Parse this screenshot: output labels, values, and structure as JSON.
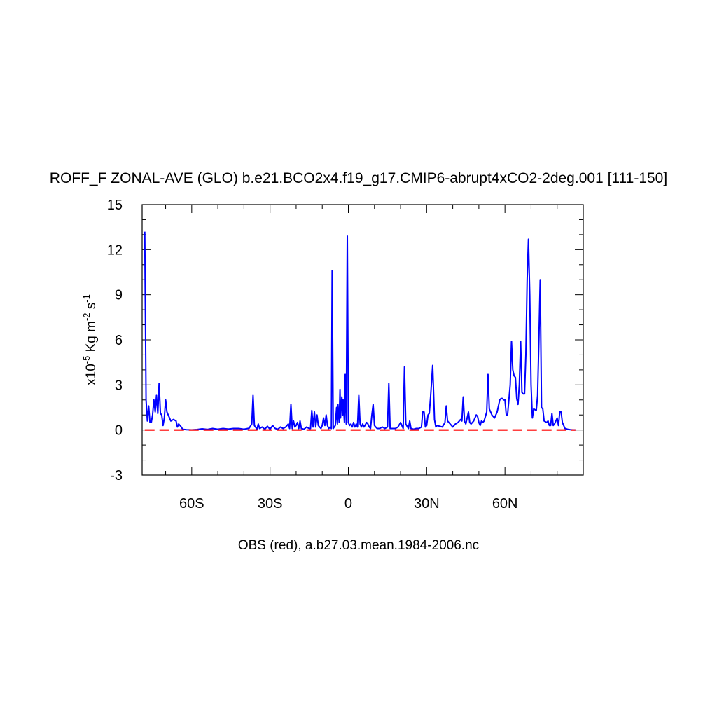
{
  "chart_data": {
    "type": "line",
    "title": "ROFF_F ZONAL-AVE (GLO) b.e21.BCO2x4.f19_g17.CMIP6-abrupt4xCO2-2deg.001 [111-150]",
    "ylabel": {
      "prefix": "x10",
      "prefix_exp": "-5",
      "unit": " Kg m",
      "unit_exp": "-2",
      "unit2": " s",
      "unit2_exp": "-1"
    },
    "xlabel": "OBS (red), a.b27.03.mean.1984-2006.nc",
    "xlim": [
      -79,
      90
    ],
    "ylim": [
      -3,
      15
    ],
    "x_ticks": [
      {
        "value": -60,
        "label": "60S"
      },
      {
        "value": -30,
        "label": "30S"
      },
      {
        "value": 0,
        "label": "0"
      },
      {
        "value": 30,
        "label": "30N"
      },
      {
        "value": 60,
        "label": "60N"
      }
    ],
    "y_ticks": [
      {
        "value": -3,
        "label": "-3"
      },
      {
        "value": 0,
        "label": "0"
      },
      {
        "value": 3,
        "label": "3"
      },
      {
        "value": 6,
        "label": "6"
      },
      {
        "value": 9,
        "label": "9"
      },
      {
        "value": 12,
        "label": "12"
      },
      {
        "value": 15,
        "label": "15"
      }
    ],
    "x_minor_step": 10,
    "y_minor_step": 1,
    "grid": false,
    "series": [
      {
        "color": "#0000ff",
        "style": "solid",
        "points": [
          [
            -78,
            13.2
          ],
          [
            -77.5,
            2.0
          ],
          [
            -77,
            0.6
          ],
          [
            -76.5,
            1.6
          ],
          [
            -76,
            0.5
          ],
          [
            -75.5,
            0.5
          ],
          [
            -75,
            1.0
          ],
          [
            -74.5,
            2.0
          ],
          [
            -74,
            1.2
          ],
          [
            -73.5,
            2.3
          ],
          [
            -73,
            1.1
          ],
          [
            -72.5,
            3.1
          ],
          [
            -72,
            1.1
          ],
          [
            -71.5,
            1.0
          ],
          [
            -71,
            0.3
          ],
          [
            -70.5,
            0.8
          ],
          [
            -70,
            2.0
          ],
          [
            -69.5,
            1.2
          ],
          [
            -69,
            1.0
          ],
          [
            -68,
            0.6
          ],
          [
            -67,
            0.7
          ],
          [
            -66,
            0.6
          ],
          [
            -65.5,
            0.2
          ],
          [
            -65,
            0.4
          ],
          [
            -64,
            0.2
          ],
          [
            -63.5,
            0.05
          ],
          [
            -62,
            0.02
          ],
          [
            -60,
            0.01
          ],
          [
            -58,
            0.03
          ],
          [
            -56,
            0.08
          ],
          [
            -54,
            0.04
          ],
          [
            -52,
            0.1
          ],
          [
            -50,
            0.05
          ],
          [
            -48,
            0.1
          ],
          [
            -46,
            0.06
          ],
          [
            -44,
            0.1
          ],
          [
            -42,
            0.1
          ],
          [
            -40,
            0.05
          ],
          [
            -38,
            0.12
          ],
          [
            -37,
            0.4
          ],
          [
            -36.5,
            2.3
          ],
          [
            -36,
            0.3
          ],
          [
            -35,
            0.05
          ],
          [
            -34.5,
            0.4
          ],
          [
            -34,
            0.1
          ],
          [
            -33,
            0.2
          ],
          [
            -32,
            0.05
          ],
          [
            -31,
            0.25
          ],
          [
            -30,
            0.05
          ],
          [
            -29,
            0.3
          ],
          [
            -28,
            0.1
          ],
          [
            -27,
            0.05
          ],
          [
            -26,
            0.2
          ],
          [
            -25,
            0.1
          ],
          [
            -24,
            0.2
          ],
          [
            -23,
            0.4
          ],
          [
            -22.5,
            0.1
          ],
          [
            -22,
            1.7
          ],
          [
            -21.5,
            0.1
          ],
          [
            -21,
            0.6
          ],
          [
            -20.5,
            0.2
          ],
          [
            -20,
            0.3
          ],
          [
            -19.5,
            0.5
          ],
          [
            -19,
            0.1
          ],
          [
            -18.5,
            0.6
          ],
          [
            -18,
            0.1
          ],
          [
            -17,
            0.05
          ],
          [
            -16,
            0.2
          ],
          [
            -15,
            0.1
          ],
          [
            -14.5,
            0.1
          ],
          [
            -14,
            1.3
          ],
          [
            -13.5,
            0.2
          ],
          [
            -13,
            1.2
          ],
          [
            -12.5,
            0.2
          ],
          [
            -12,
            1.0
          ],
          [
            -11.5,
            0.3
          ],
          [
            -11,
            0.2
          ],
          [
            -10.5,
            0.1
          ],
          [
            -10,
            0.3
          ],
          [
            -9.5,
            0.8
          ],
          [
            -9,
            0.3
          ],
          [
            -8.5,
            1.0
          ],
          [
            -8,
            0.3
          ],
          [
            -7.5,
            0.1
          ],
          [
            -7,
            0.2
          ],
          [
            -6.5,
            0.1
          ],
          [
            -6.2,
            10.6
          ],
          [
            -5.8,
            0.1
          ],
          [
            -5,
            0.3
          ],
          [
            -4.5,
            1.5
          ],
          [
            -4.2,
            0.4
          ],
          [
            -4,
            1.7
          ],
          [
            -3.5,
            0.5
          ],
          [
            -3.2,
            2.7
          ],
          [
            -3,
            0.8
          ],
          [
            -2.5,
            2.2
          ],
          [
            -2.2,
            1.0
          ],
          [
            -2,
            2.0
          ],
          [
            -1.5,
            0.5
          ],
          [
            -1.2,
            3.7
          ],
          [
            -0.8,
            0.4
          ],
          [
            -0.4,
            12.9
          ],
          [
            0,
            0.5
          ],
          [
            0.5,
            0.3
          ],
          [
            1,
            0.4
          ],
          [
            1.5,
            0.2
          ],
          [
            2,
            0.5
          ],
          [
            2.5,
            0.2
          ],
          [
            3,
            0.4
          ],
          [
            3.5,
            0.2
          ],
          [
            4,
            2.3
          ],
          [
            4.5,
            0.4
          ],
          [
            5,
            0.2
          ],
          [
            5.5,
            0.4
          ],
          [
            6,
            0.2
          ],
          [
            7,
            0.5
          ],
          [
            7.5,
            0.4
          ],
          [
            8,
            0.2
          ],
          [
            8.5,
            0.1
          ],
          [
            9,
            1.0
          ],
          [
            9.5,
            1.7
          ],
          [
            10,
            0.3
          ],
          [
            11,
            0.1
          ],
          [
            12,
            0.1
          ],
          [
            13,
            0.2
          ],
          [
            14,
            0.1
          ],
          [
            15,
            0.2
          ],
          [
            15.5,
            3.1
          ],
          [
            16,
            0.1
          ],
          [
            17,
            0.1
          ],
          [
            18,
            0.1
          ],
          [
            19,
            0.2
          ],
          [
            20,
            0.5
          ],
          [
            21,
            0.1
          ],
          [
            21.5,
            4.2
          ],
          [
            22,
            0.4
          ],
          [
            23,
            0.1
          ],
          [
            23.5,
            0.6
          ],
          [
            24,
            0.1
          ],
          [
            25,
            0.05
          ],
          [
            26,
            0.1
          ],
          [
            27,
            0.1
          ],
          [
            28,
            0.2
          ],
          [
            28.5,
            1.2
          ],
          [
            29,
            1.2
          ],
          [
            29.5,
            0.2
          ],
          [
            30,
            0.3
          ],
          [
            30.5,
            1.0
          ],
          [
            31,
            1.1
          ],
          [
            31.5,
            2.2
          ],
          [
            32.3,
            4.3
          ],
          [
            33,
            0.7
          ],
          [
            33.5,
            0.2
          ],
          [
            34,
            0.3
          ],
          [
            35,
            0.25
          ],
          [
            36,
            0.2
          ],
          [
            37,
            0.5
          ],
          [
            37.5,
            1.6
          ],
          [
            38,
            0.6
          ],
          [
            39,
            0.4
          ],
          [
            40,
            0.2
          ],
          [
            41,
            0.4
          ],
          [
            42,
            0.5
          ],
          [
            43,
            0.7
          ],
          [
            43.5,
            0.6
          ],
          [
            44,
            2.2
          ],
          [
            44.5,
            0.6
          ],
          [
            45,
            0.4
          ],
          [
            46,
            1.2
          ],
          [
            46.5,
            0.5
          ],
          [
            47,
            0.4
          ],
          [
            48,
            0.6
          ],
          [
            49,
            1.0
          ],
          [
            49.5,
            0.9
          ],
          [
            50,
            0.5
          ],
          [
            50.5,
            0.3
          ],
          [
            51,
            0.6
          ],
          [
            51.5,
            0.5
          ],
          [
            52,
            0.6
          ],
          [
            53,
            1.2
          ],
          [
            53.5,
            3.7
          ],
          [
            54,
            1.4
          ],
          [
            55,
            1.0
          ],
          [
            56,
            0.8
          ],
          [
            57,
            1.2
          ],
          [
            58,
            2.0
          ],
          [
            58.5,
            2.1
          ],
          [
            59,
            2.1
          ],
          [
            59.5,
            2.0
          ],
          [
            60,
            2.0
          ],
          [
            60.5,
            1.0
          ],
          [
            61,
            1.0
          ],
          [
            62,
            3.0
          ],
          [
            62.5,
            5.9
          ],
          [
            63,
            4.0
          ],
          [
            63.5,
            3.6
          ],
          [
            64,
            3.5
          ],
          [
            64.5,
            2.1
          ],
          [
            65,
            1.7
          ],
          [
            65.5,
            3.0
          ],
          [
            66,
            5.9
          ],
          [
            66.5,
            2.5
          ],
          [
            67,
            2.4
          ],
          [
            67.5,
            2.4
          ],
          [
            68,
            5.0
          ],
          [
            68.5,
            10.0
          ],
          [
            69,
            12.7
          ],
          [
            69.5,
            9.0
          ],
          [
            70,
            3.0
          ],
          [
            70.5,
            0.8
          ],
          [
            71,
            1.4
          ],
          [
            72,
            1.3
          ],
          [
            72.5,
            2.3
          ],
          [
            73,
            6.0
          ],
          [
            73.5,
            10.0
          ],
          [
            74,
            1.5
          ],
          [
            74.5,
            1.4
          ],
          [
            75,
            0.6
          ],
          [
            76,
            0.5
          ],
          [
            76.5,
            0.6
          ],
          [
            77,
            0.3
          ],
          [
            77.5,
            0.3
          ],
          [
            78,
            1.1
          ],
          [
            78.5,
            0.3
          ],
          [
            79,
            0.4
          ],
          [
            80,
            0.8
          ],
          [
            80.5,
            0.3
          ],
          [
            81,
            1.2
          ],
          [
            81.5,
            1.2
          ],
          [
            82,
            0.5
          ],
          [
            83,
            0.1
          ],
          [
            84,
            0.05
          ],
          [
            85,
            0.02
          ],
          [
            86,
            0.01
          ],
          [
            87,
            0.0
          ]
        ]
      },
      {
        "color": "#ff0000",
        "style": "dashed",
        "points": [
          [
            -78,
            0.0
          ],
          [
            87,
            0.0
          ]
        ]
      }
    ]
  }
}
